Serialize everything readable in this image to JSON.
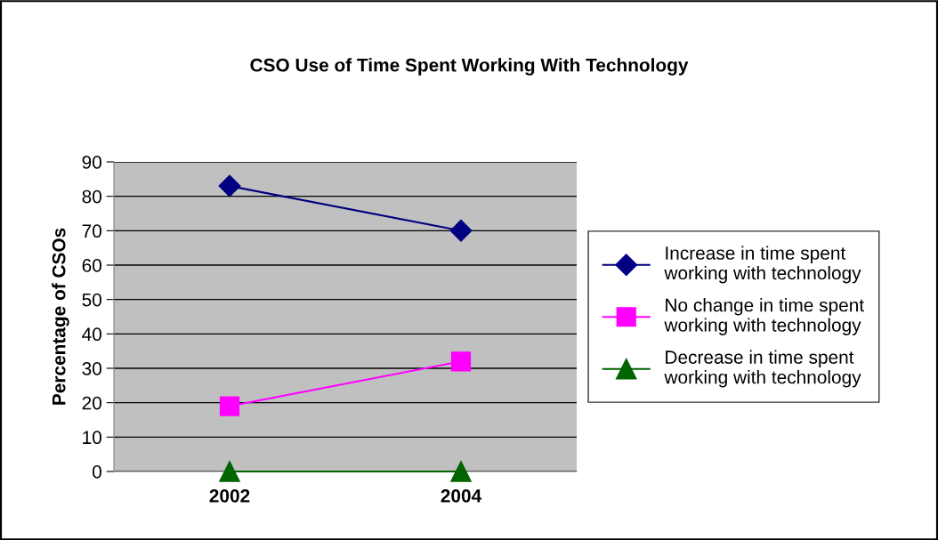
{
  "chart_data": {
    "type": "line",
    "title": "CSO Use of Time Spent Working With Technology",
    "ylabel": "Percentage of CSOs",
    "categories": [
      "2002",
      "2004"
    ],
    "series": [
      {
        "name": "Increase in time spent working with technology",
        "color": "#000080",
        "marker": "diamond",
        "values": [
          83,
          70
        ]
      },
      {
        "name": "No change in time spent working with technology",
        "color": "#ff00ff",
        "marker": "square",
        "values": [
          19,
          32
        ]
      },
      {
        "name": "Decrease in time spent working with technology",
        "color": "#006400",
        "marker": "triangle",
        "values": [
          0,
          0
        ]
      }
    ],
    "ylim": [
      0,
      90
    ],
    "yticks": [
      0,
      10,
      20,
      30,
      40,
      50,
      60,
      70,
      80,
      90
    ],
    "grid": "y",
    "legend": "right"
  }
}
